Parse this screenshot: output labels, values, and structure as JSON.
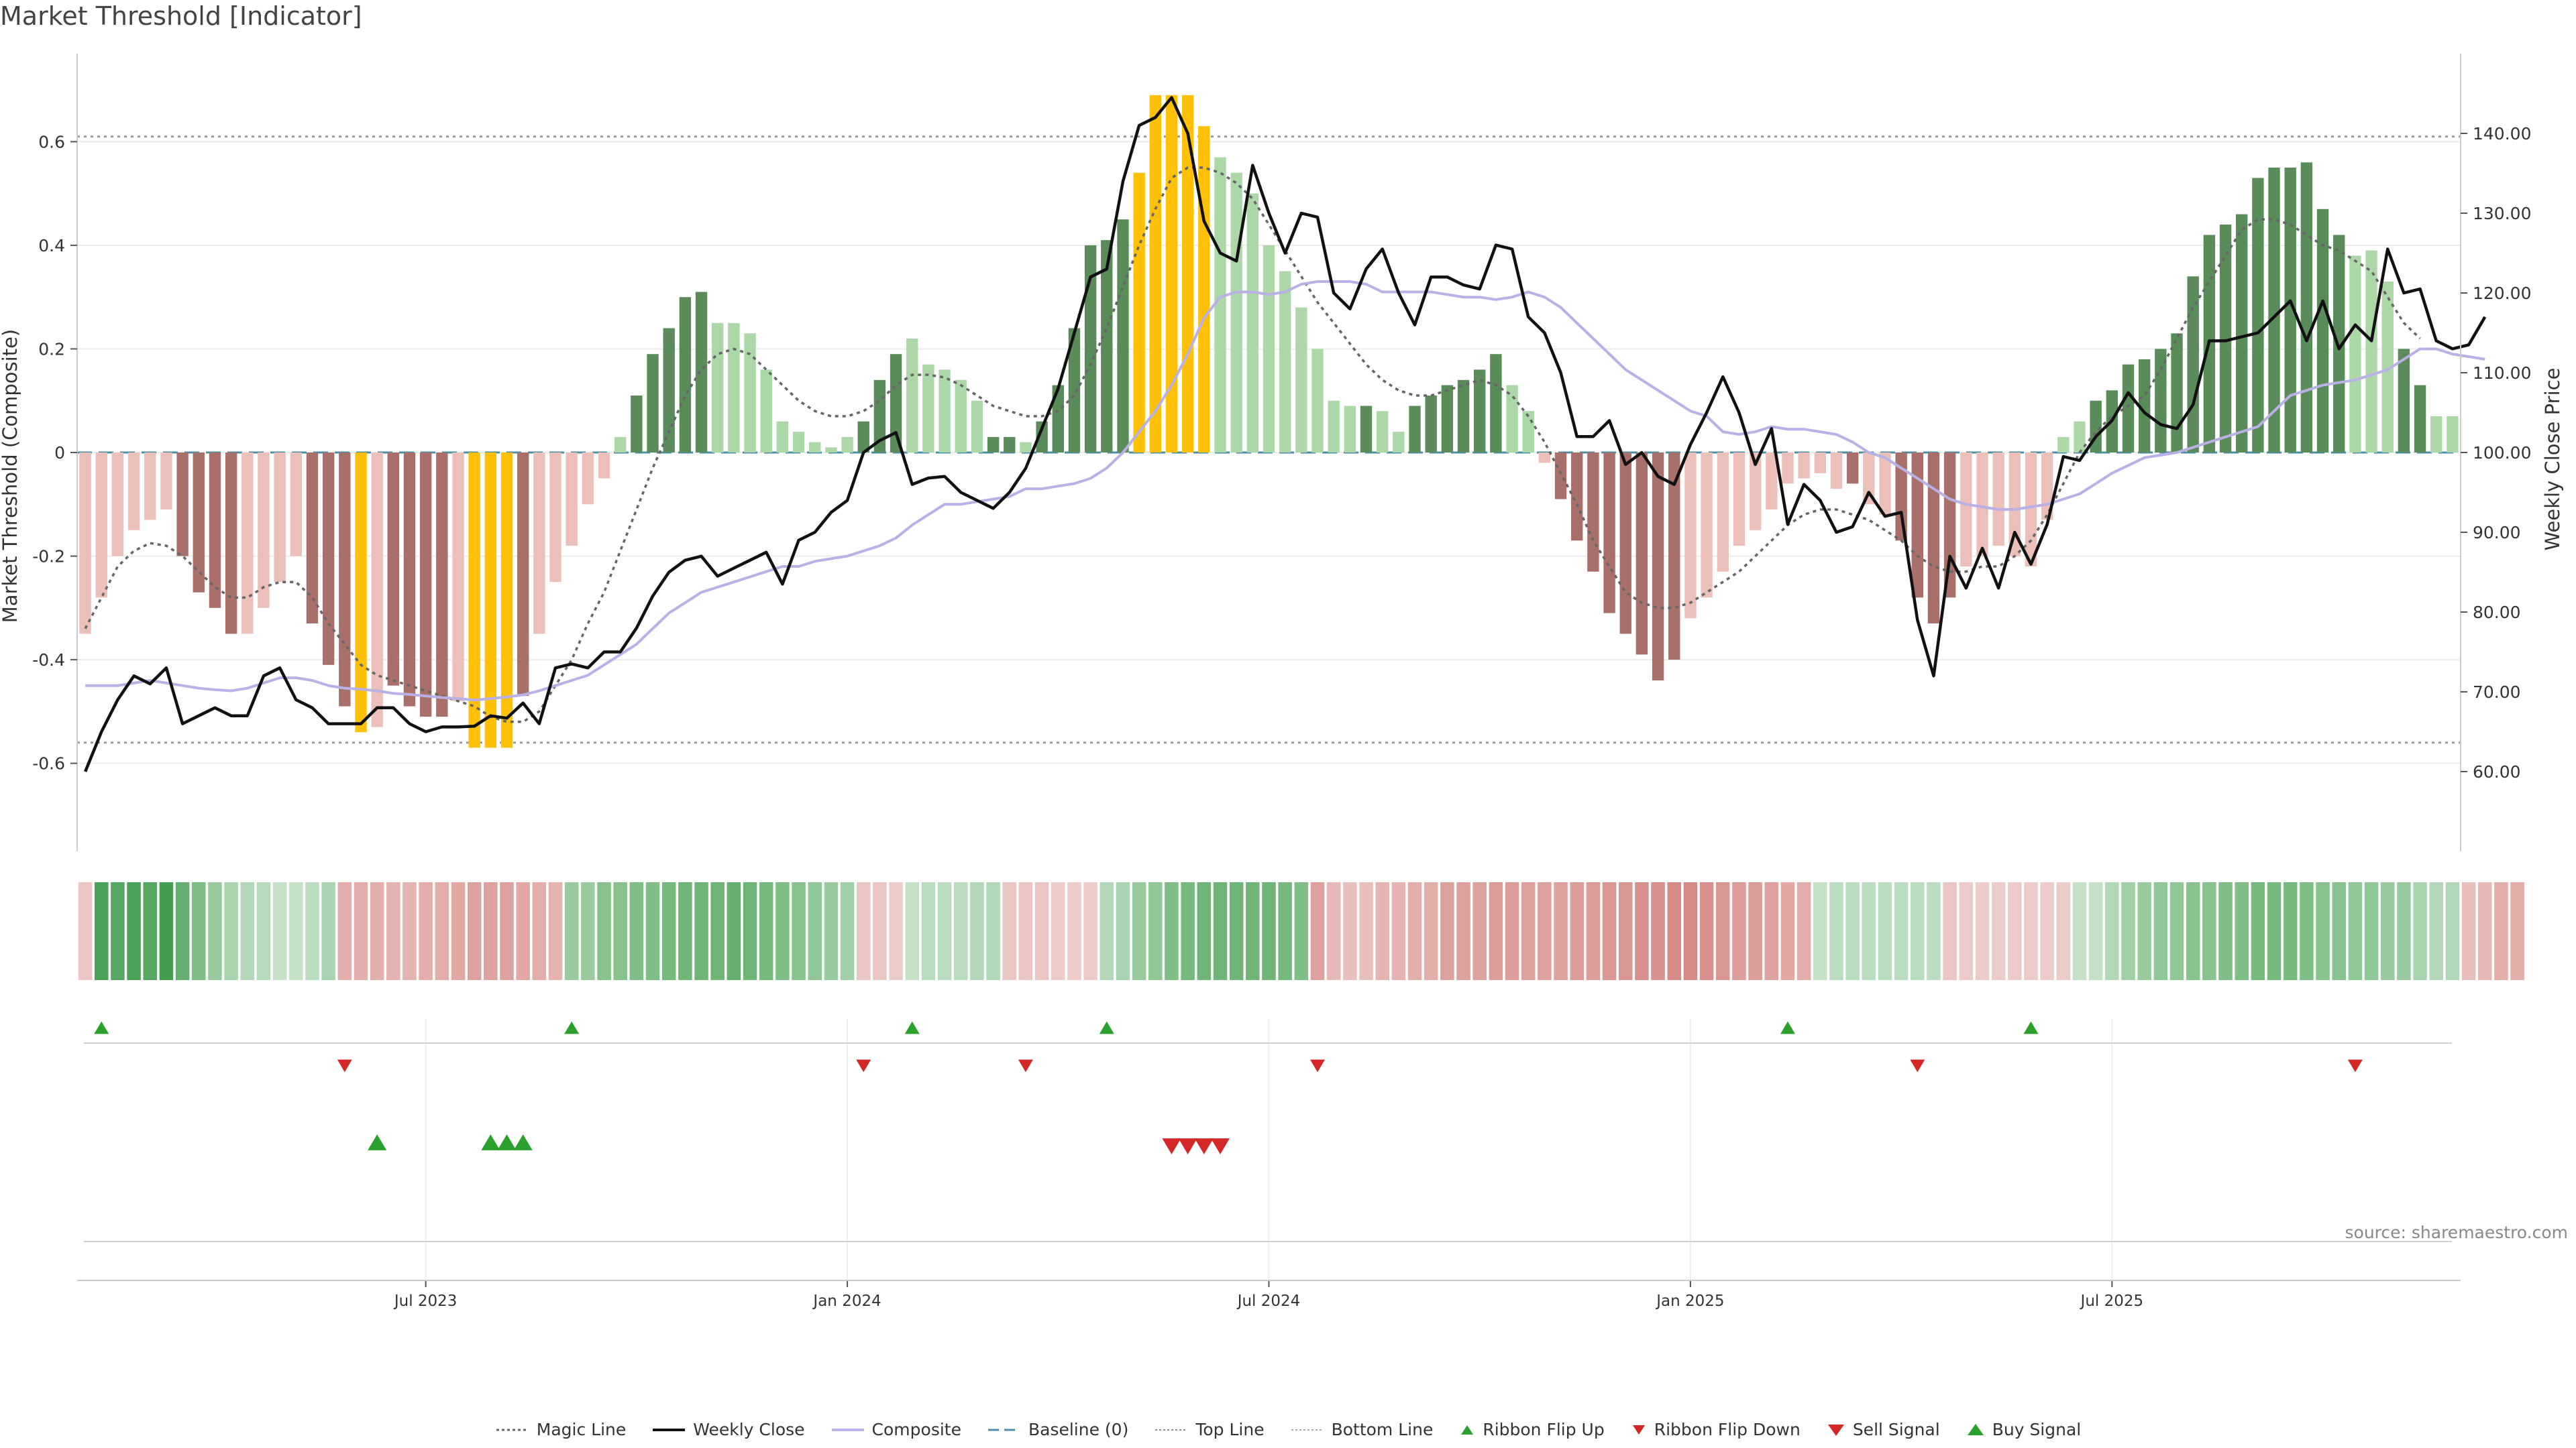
{
  "title": "Market Threshold [Indicator]",
  "source": "source: sharemaestro.com",
  "colors": {
    "strong_up": "#5a8c5a",
    "weak_up": "#acd8a8",
    "strong_down": "#a87068",
    "weak_down": "#ecc0b8",
    "extreme": "#ffc107",
    "price": "#111111",
    "composite": "#b8b0e6",
    "magic": "#666666",
    "baseline": "#4a8fa8",
    "signal_up": "#2ca02c",
    "signal_down": "#d62728"
  },
  "chart_data": {
    "type": "bar",
    "x_labels": [
      "Jul 2023",
      "Jan 2024",
      "Jul 2024",
      "Jan 2025",
      "Jul 2025"
    ],
    "x_label_index": [
      21,
      47,
      73,
      99,
      125
    ],
    "ylabel_left": "Market Threshold (Composite)",
    "ylabel_right": "Weekly Close Price",
    "ylim_left": [
      -0.77,
      0.77
    ],
    "ylim_right": [
      50,
      150
    ],
    "yticks_left": [
      "0.6",
      "0.4",
      "0.2",
      "0",
      "-0.2",
      "-0.4",
      "-0.6"
    ],
    "yticks_right": [
      "140.00",
      "130.00",
      "120.00",
      "110.00",
      "100.00",
      "90.00",
      "80.00",
      "70.00",
      "60.00"
    ],
    "top_line": 0.61,
    "bottom_line": -0.56,
    "baseline": 0,
    "bars": [
      -0.35,
      -0.28,
      -0.2,
      -0.15,
      -0.13,
      -0.11,
      -0.2,
      -0.27,
      -0.3,
      -0.35,
      -0.35,
      -0.3,
      -0.25,
      -0.2,
      -0.33,
      -0.41,
      -0.49,
      -0.54,
      -0.53,
      -0.45,
      -0.49,
      -0.51,
      -0.51,
      -0.48,
      -0.57,
      -0.57,
      -0.57,
      -0.47,
      -0.35,
      -0.25,
      -0.18,
      -0.1,
      -0.05,
      0.03,
      0.11,
      0.19,
      0.24,
      0.3,
      0.31,
      0.25,
      0.25,
      0.23,
      0.16,
      0.06,
      0.04,
      0.02,
      0.01,
      0.03,
      0.06,
      0.14,
      0.19,
      0.22,
      0.17,
      0.16,
      0.14,
      0.1,
      0.03,
      0.03,
      0.02,
      0.06,
      0.13,
      0.24,
      0.4,
      0.41,
      0.45,
      0.54,
      0.69,
      0.69,
      0.69,
      0.63,
      0.57,
      0.54,
      0.5,
      0.4,
      0.35,
      0.28,
      0.2,
      0.1,
      0.09,
      0.09,
      0.08,
      0.04,
      0.09,
      0.11,
      0.13,
      0.14,
      0.16,
      0.19,
      0.13,
      0.08,
      -0.02,
      -0.09,
      -0.17,
      -0.23,
      -0.31,
      -0.35,
      -0.39,
      -0.44,
      -0.4,
      -0.32,
      -0.28,
      -0.23,
      -0.18,
      -0.15,
      -0.11,
      -0.06,
      -0.05,
      -0.04,
      -0.07,
      -0.06,
      -0.1,
      -0.12,
      -0.17,
      -0.28,
      -0.33,
      -0.28,
      -0.22,
      -0.2,
      -0.18,
      -0.2,
      -0.22,
      -0.13,
      0.03,
      0.06,
      0.1,
      0.12,
      0.17,
      0.18,
      0.2,
      0.23,
      0.34,
      0.42,
      0.44,
      0.46,
      0.53,
      0.55,
      0.55,
      0.56,
      0.47,
      0.42,
      0.38,
      0.39,
      0.33,
      0.2,
      0.13,
      0.07,
      0.07
    ],
    "bar_shade": [
      "w",
      "w",
      "w",
      "w",
      "w",
      "w",
      "s",
      "s",
      "s",
      "s",
      "w",
      "w",
      "w",
      "w",
      "s",
      "s",
      "s",
      "x",
      "w",
      "s",
      "s",
      "s",
      "s",
      "w",
      "x",
      "x",
      "x",
      "s",
      "w",
      "w",
      "w",
      "w",
      "w",
      "w",
      "s",
      "s",
      "s",
      "s",
      "s",
      "w",
      "w",
      "w",
      "w",
      "w",
      "w",
      "w",
      "w",
      "w",
      "s",
      "s",
      "s",
      "w",
      "w",
      "w",
      "w",
      "w",
      "s",
      "s",
      "w",
      "s",
      "s",
      "s",
      "s",
      "s",
      "s",
      "x",
      "x",
      "x",
      "x",
      "x",
      "w",
      "w",
      "w",
      "w",
      "w",
      "w",
      "w",
      "w",
      "w",
      "s",
      "w",
      "w",
      "s",
      "s",
      "s",
      "s",
      "s",
      "s",
      "w",
      "w",
      "w",
      "s",
      "s",
      "s",
      "s",
      "s",
      "s",
      "s",
      "s",
      "w",
      "w",
      "w",
      "w",
      "w",
      "w",
      "w",
      "w",
      "w",
      "w",
      "s",
      "w",
      "w",
      "s",
      "s",
      "s",
      "s",
      "w",
      "w",
      "w",
      "w",
      "w",
      "w",
      "w",
      "w",
      "s",
      "s",
      "s",
      "s",
      "s",
      "s",
      "s",
      "s",
      "s",
      "s",
      "s",
      "s",
      "s",
      "s",
      "s",
      "s",
      "w",
      "w",
      "w",
      "s",
      "s",
      "w",
      "w",
      "w",
      "s"
    ],
    "series": [
      {
        "name": "Weekly Close",
        "axis": "right",
        "values": [
          60,
          65,
          69,
          72,
          71,
          73,
          66,
          67,
          68,
          67,
          67,
          72,
          73,
          69,
          68,
          66,
          66,
          66,
          68,
          68,
          66,
          65,
          65.6,
          65.6,
          65.7,
          67,
          66.7,
          68.6,
          66,
          73,
          73.5,
          73,
          75,
          75,
          78,
          82,
          85,
          86.5,
          87,
          84.5,
          85.5,
          86.5,
          87.5,
          83.5,
          89,
          90,
          92.5,
          94,
          100,
          101.5,
          102.5,
          96,
          96.8,
          97,
          95,
          94,
          93,
          95,
          98,
          103,
          108,
          115,
          122,
          123,
          134,
          141,
          142,
          144.5,
          140,
          129,
          125,
          124,
          136,
          130,
          125,
          130,
          129.5,
          120,
          118,
          123,
          125.5,
          120,
          116,
          122,
          122,
          121,
          120.5,
          126,
          125.5,
          117,
          115,
          110,
          102,
          102,
          104,
          98.5,
          100,
          97,
          96,
          101,
          105,
          109.5,
          105,
          98.5,
          103,
          91,
          96,
          94,
          90,
          90.7,
          95,
          92,
          92.5,
          79,
          72,
          87,
          83,
          88,
          83,
          90,
          86,
          91,
          99.5,
          99,
          102,
          104,
          107.5,
          105,
          103.5,
          103,
          106,
          114,
          114,
          114.5,
          115,
          117,
          119,
          114,
          119,
          113,
          116,
          114,
          125.5,
          120,
          120.5,
          114,
          113,
          113.5,
          117
        ]
      },
      {
        "name": "Composite",
        "axis": "left",
        "values": [
          -0.45,
          -0.45,
          -0.45,
          -0.445,
          -0.44,
          -0.445,
          -0.45,
          -0.455,
          -0.458,
          -0.46,
          -0.455,
          -0.445,
          -0.435,
          -0.435,
          -0.44,
          -0.45,
          -0.455,
          -0.457,
          -0.46,
          -0.465,
          -0.467,
          -0.47,
          -0.473,
          -0.475,
          -0.478,
          -0.475,
          -0.472,
          -0.468,
          -0.46,
          -0.45,
          -0.44,
          -0.43,
          -0.41,
          -0.39,
          -0.37,
          -0.34,
          -0.31,
          -0.29,
          -0.27,
          -0.26,
          -0.25,
          -0.24,
          -0.23,
          -0.22,
          -0.22,
          -0.21,
          -0.205,
          -0.2,
          -0.19,
          -0.18,
          -0.165,
          -0.14,
          -0.12,
          -0.1,
          -0.1,
          -0.095,
          -0.09,
          -0.085,
          -0.07,
          -0.07,
          -0.065,
          -0.06,
          -0.05,
          -0.03,
          0,
          0.04,
          0.08,
          0.13,
          0.19,
          0.26,
          0.3,
          0.31,
          0.31,
          0.305,
          0.31,
          0.325,
          0.33,
          0.33,
          0.33,
          0.325,
          0.31,
          0.31,
          0.31,
          0.31,
          0.305,
          0.3,
          0.3,
          0.295,
          0.3,
          0.31,
          0.3,
          0.28,
          0.25,
          0.22,
          0.19,
          0.16,
          0.14,
          0.12,
          0.1,
          0.08,
          0.07,
          0.04,
          0.035,
          0.04,
          0.05,
          0.045,
          0.045,
          0.04,
          0.035,
          0.02,
          0,
          -0.01,
          -0.03,
          -0.05,
          -0.07,
          -0.09,
          -0.1,
          -0.105,
          -0.11,
          -0.11,
          -0.105,
          -0.1,
          -0.09,
          -0.08,
          -0.06,
          -0.04,
          -0.025,
          -0.01,
          -0.005,
          0,
          0.01,
          0.02,
          0.03,
          0.04,
          0.05,
          0.08,
          0.11,
          0.12,
          0.13,
          0.135,
          0.14,
          0.15,
          0.16,
          0.18,
          0.2,
          0.2,
          0.19,
          0.185,
          0.18
        ]
      },
      {
        "name": "Magic Line",
        "axis": "left",
        "values": [
          -0.34,
          -0.28,
          -0.22,
          -0.19,
          -0.175,
          -0.18,
          -0.2,
          -0.23,
          -0.26,
          -0.28,
          -0.28,
          -0.26,
          -0.25,
          -0.25,
          -0.28,
          -0.33,
          -0.37,
          -0.41,
          -0.43,
          -0.44,
          -0.45,
          -0.46,
          -0.47,
          -0.48,
          -0.49,
          -0.51,
          -0.52,
          -0.52,
          -0.5,
          -0.45,
          -0.4,
          -0.33,
          -0.27,
          -0.19,
          -0.11,
          -0.03,
          0.04,
          0.11,
          0.16,
          0.19,
          0.2,
          0.19,
          0.16,
          0.13,
          0.1,
          0.08,
          0.07,
          0.07,
          0.08,
          0.1,
          0.13,
          0.15,
          0.15,
          0.145,
          0.13,
          0.11,
          0.09,
          0.08,
          0.07,
          0.07,
          0.08,
          0.11,
          0.17,
          0.24,
          0.32,
          0.4,
          0.47,
          0.53,
          0.55,
          0.55,
          0.54,
          0.52,
          0.49,
          0.44,
          0.39,
          0.34,
          0.29,
          0.25,
          0.21,
          0.17,
          0.14,
          0.12,
          0.11,
          0.11,
          0.12,
          0.13,
          0.14,
          0.13,
          0.11,
          0.07,
          0.02,
          -0.04,
          -0.1,
          -0.17,
          -0.22,
          -0.27,
          -0.29,
          -0.3,
          -0.3,
          -0.29,
          -0.27,
          -0.25,
          -0.23,
          -0.2,
          -0.17,
          -0.14,
          -0.12,
          -0.11,
          -0.11,
          -0.12,
          -0.13,
          -0.15,
          -0.17,
          -0.2,
          -0.22,
          -0.23,
          -0.23,
          -0.22,
          -0.22,
          -0.2,
          -0.17,
          -0.12,
          -0.06,
          0,
          0.04,
          0.07,
          0.09,
          0.11,
          0.16,
          0.22,
          0.28,
          0.33,
          0.38,
          0.43,
          0.45,
          0.45,
          0.44,
          0.42,
          0.4,
          0.39,
          0.37,
          0.35,
          0.3,
          0.25,
          0.22
        ]
      }
    ],
    "ribbon_strength": [
      0.25,
      0.9,
      0.85,
      0.9,
      0.85,
      0.95,
      0.75,
      0.6,
      0.45,
      0.35,
      0.3,
      0.28,
      0.2,
      0.2,
      0.25,
      0.35,
      0.45,
      0.45,
      0.45,
      0.4,
      0.4,
      0.45,
      0.45,
      0.5,
      0.55,
      0.55,
      0.55,
      0.5,
      0.45,
      0.4,
      0.45,
      0.45,
      0.55,
      0.55,
      0.6,
      0.6,
      0.65,
      0.7,
      0.7,
      0.7,
      0.75,
      0.7,
      0.65,
      0.6,
      0.55,
      0.5,
      0.45,
      0.4,
      0.25,
      0.25,
      0.2,
      0.2,
      0.25,
      0.25,
      0.25,
      0.3,
      0.3,
      0.25,
      0.25,
      0.25,
      0.2,
      0.2,
      0.2,
      0.3,
      0.35,
      0.45,
      0.5,
      0.6,
      0.65,
      0.7,
      0.7,
      0.7,
      0.7,
      0.7,
      0.65,
      0.6,
      0.55,
      0.35,
      0.3,
      0.3,
      0.4,
      0.4,
      0.45,
      0.45,
      0.55,
      0.55,
      0.55,
      0.6,
      0.6,
      0.55,
      0.55,
      0.55,
      0.6,
      0.6,
      0.65,
      0.65,
      0.7,
      0.7,
      0.75,
      0.75,
      0.7,
      0.65,
      0.6,
      0.6,
      0.55,
      0.5,
      0.45,
      0.2,
      0.25,
      0.25,
      0.25,
      0.25,
      0.25,
      0.25,
      0.25,
      0.25,
      0.2,
      0.2,
      0.2,
      0.2,
      0.2,
      0.2,
      0.2,
      0.2,
      0.2,
      0.3,
      0.4,
      0.45,
      0.5,
      0.5,
      0.55,
      0.55,
      0.6,
      0.6,
      0.65,
      0.65,
      0.65,
      0.6,
      0.55,
      0.55,
      0.5,
      0.5,
      0.45,
      0.45,
      0.35,
      0.3,
      0.3,
      0.3,
      0.35,
      0.45,
      0.45
    ],
    "ribbon_dir": [
      "d",
      "u",
      "u",
      "u",
      "u",
      "u",
      "u",
      "u",
      "u",
      "u",
      "u",
      "u",
      "u",
      "u",
      "u",
      "u",
      "d",
      "d",
      "d",
      "d",
      "d",
      "d",
      "d",
      "d",
      "d",
      "d",
      "d",
      "d",
      "d",
      "d",
      "u",
      "u",
      "u",
      "u",
      "u",
      "u",
      "u",
      "u",
      "u",
      "u",
      "u",
      "u",
      "u",
      "u",
      "u",
      "u",
      "u",
      "u",
      "d",
      "d",
      "d",
      "u",
      "u",
      "u",
      "u",
      "u",
      "u",
      "d",
      "d",
      "d",
      "d",
      "d",
      "d",
      "u",
      "u",
      "u",
      "u",
      "u",
      "u",
      "u",
      "u",
      "u",
      "u",
      "u",
      "u",
      "u",
      "d",
      "d",
      "d",
      "d",
      "d",
      "d",
      "d",
      "d",
      "d",
      "d",
      "d",
      "d",
      "d",
      "d",
      "d",
      "d",
      "d",
      "d",
      "d",
      "d",
      "d",
      "d",
      "d",
      "d",
      "d",
      "d",
      "d",
      "d",
      "d",
      "d",
      "d",
      "u",
      "u",
      "u",
      "u",
      "u",
      "u",
      "u",
      "u",
      "d",
      "d",
      "d",
      "d",
      "d",
      "d",
      "d",
      "d",
      "u",
      "u",
      "u",
      "u",
      "u",
      "u",
      "u",
      "u",
      "u",
      "u",
      "u",
      "u",
      "u",
      "u",
      "u",
      "u",
      "u",
      "u",
      "u",
      "u",
      "u",
      "u",
      "u",
      "u",
      "d",
      "d",
      "d",
      "d"
    ],
    "ribbon_flip_up": [
      1,
      30,
      51,
      63,
      105,
      120
    ],
    "ribbon_flip_down": [
      16,
      48,
      58,
      76,
      113,
      140
    ],
    "buy_signal": [
      18,
      25,
      26,
      27
    ],
    "sell_signal": [
      67,
      68,
      69,
      70
    ],
    "legend": [
      "Magic Line",
      "Weekly Close",
      "Composite",
      "Baseline (0)",
      "Top Line",
      "Bottom Line",
      "Ribbon Flip Up",
      "Ribbon Flip Down",
      "Sell Signal",
      "Buy Signal"
    ],
    "grid": true,
    "legend_position": "bottom"
  }
}
